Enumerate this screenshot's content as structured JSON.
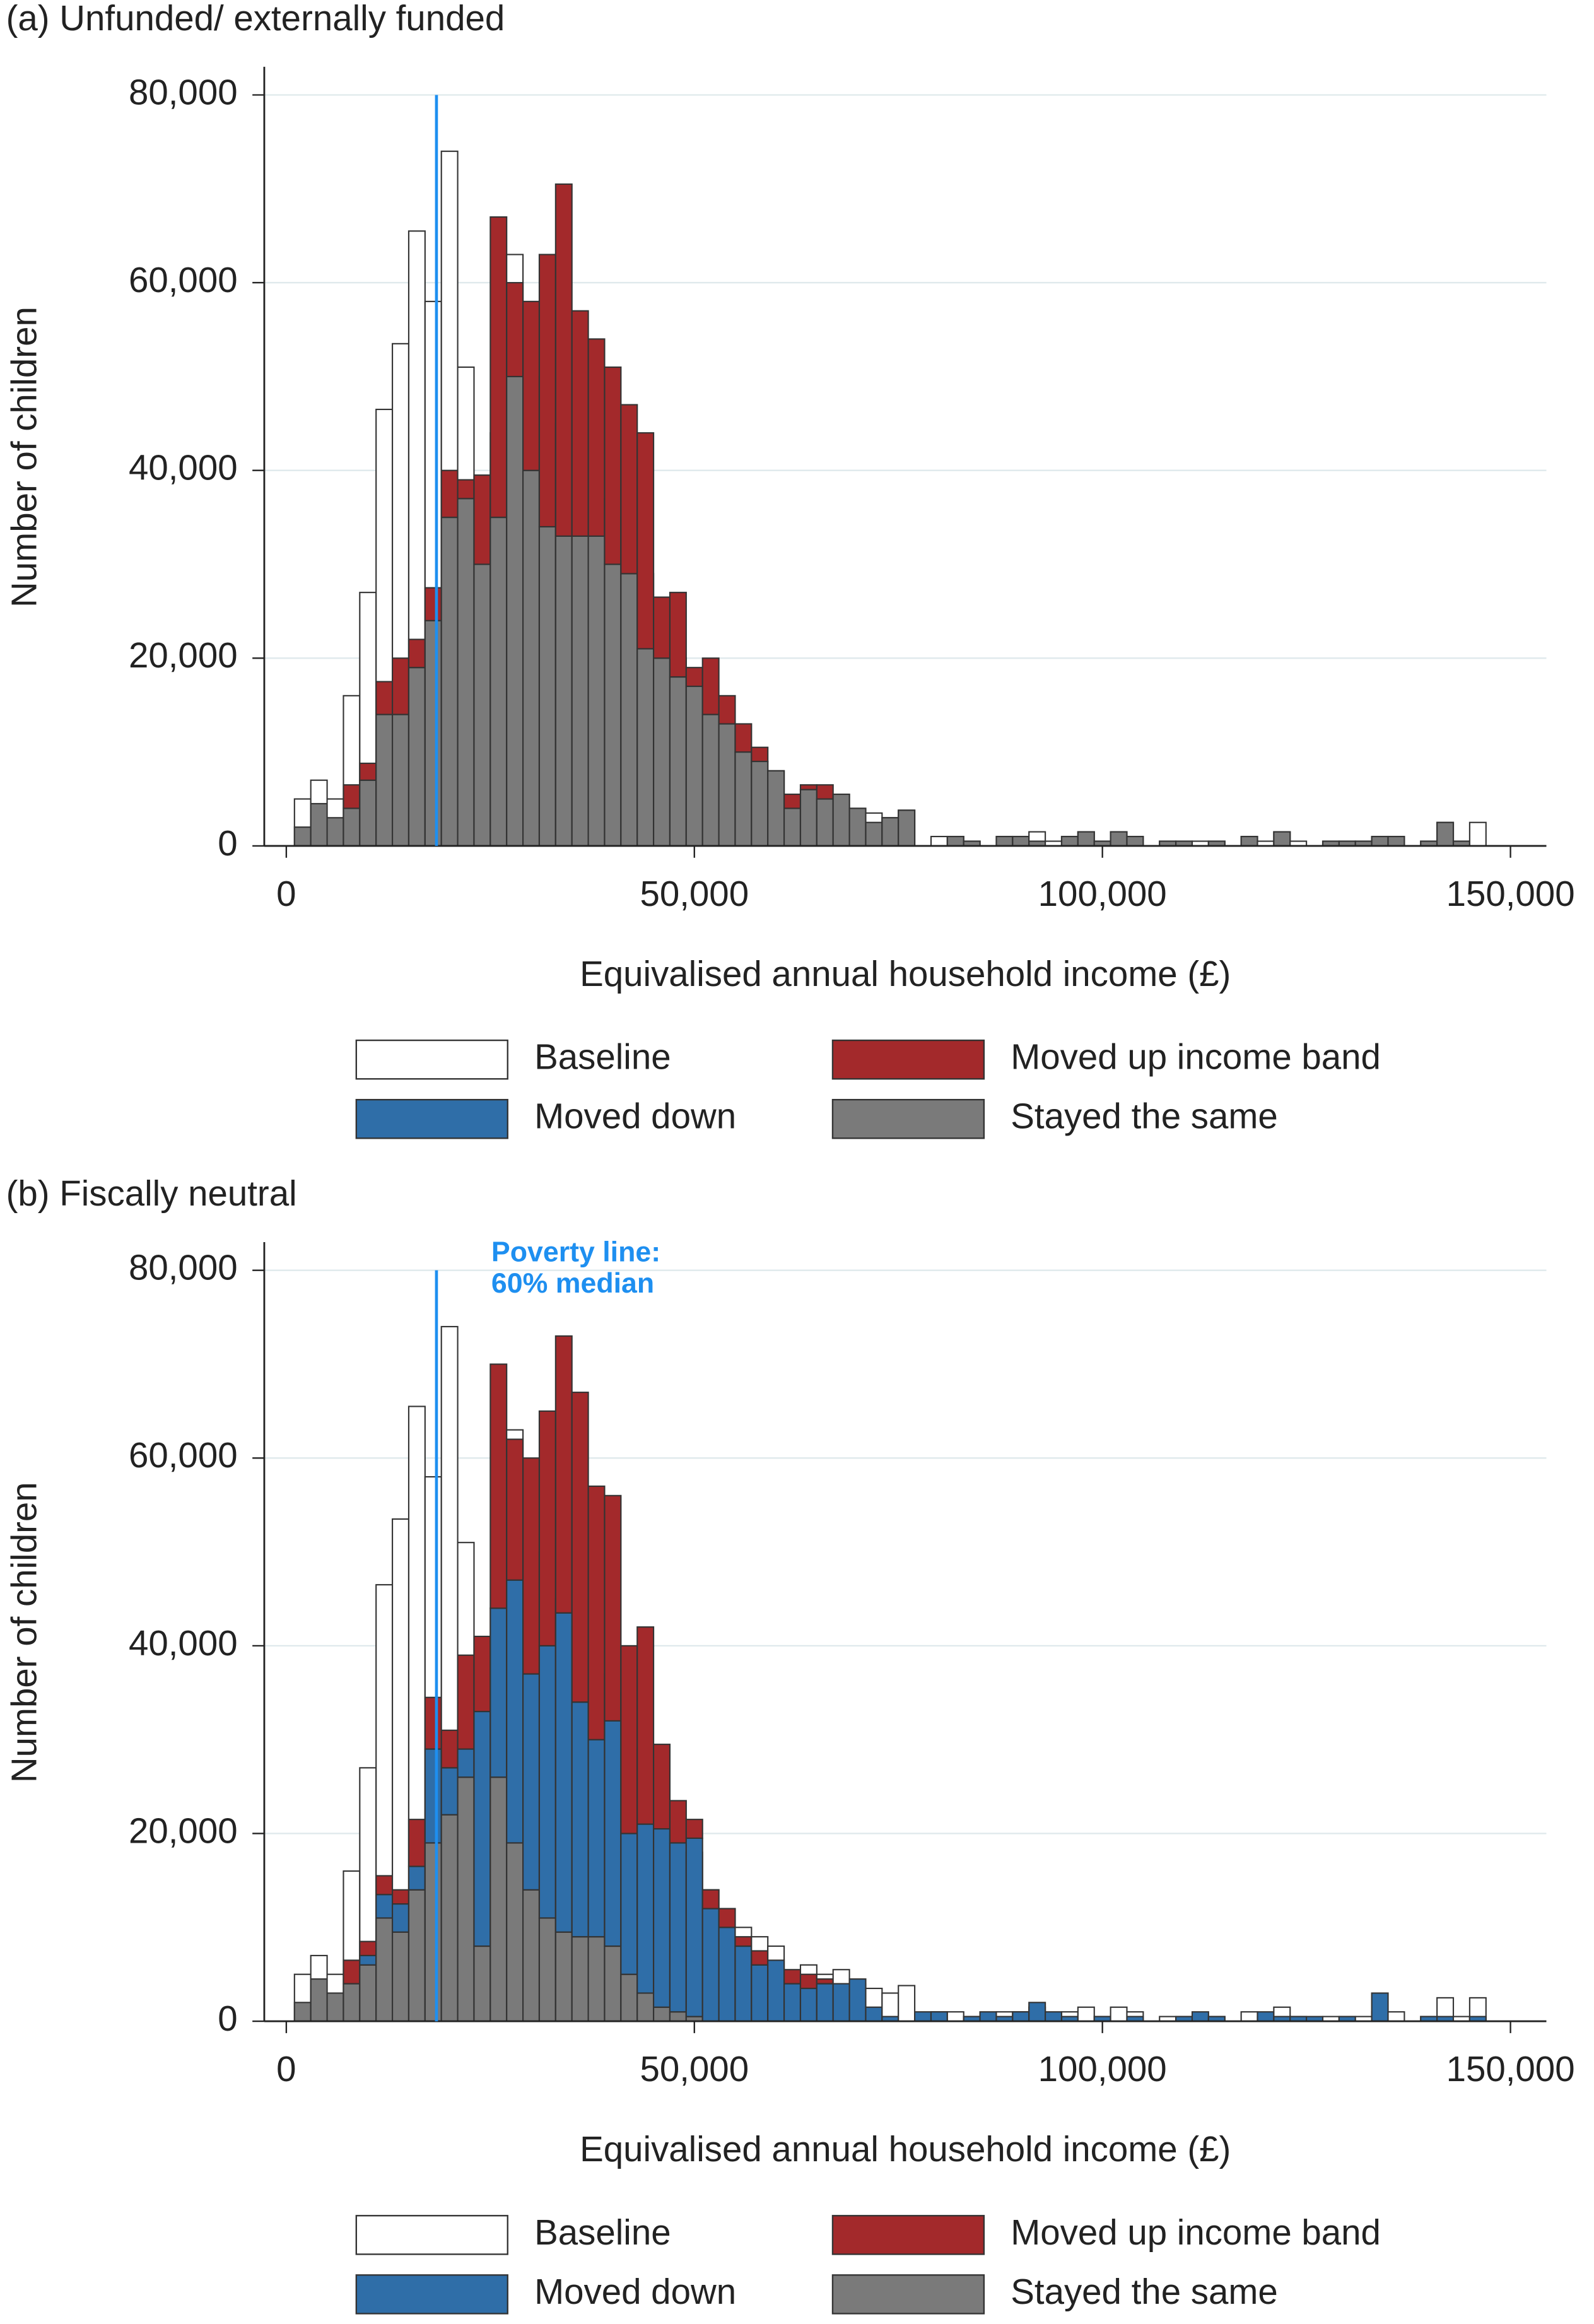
{
  "chart_data": [
    {
      "type": "histogram",
      "title": "(a) Unfunded/ externally funded",
      "xlabel": "Equivalised annual household income (£)",
      "ylabel": "Number of children",
      "bins": [
        1000,
        3000,
        5000,
        7000,
        9000,
        11000,
        13000,
        15000,
        17000,
        19000,
        21000,
        23000,
        25000,
        27000,
        29000,
        31000,
        33000,
        35000,
        37000,
        39000,
        41000,
        43000,
        45000,
        47000,
        49000,
        51000,
        53000,
        55000,
        57000,
        59000,
        61000,
        63000,
        65000,
        67000,
        69000,
        71000,
        73000,
        75000,
        77000,
        79000,
        81000,
        83000,
        85000,
        87000,
        89000,
        91000,
        93000,
        95000,
        97000,
        99000,
        101000,
        103000,
        105000,
        107000,
        109000,
        111000,
        113000,
        115000,
        117000,
        119000,
        121000,
        123000,
        125000,
        127000,
        129000,
        131000,
        133000,
        135000,
        137000,
        139000,
        141000,
        143000,
        145000,
        147000,
        149000
      ],
      "series": [
        {
          "name": "Baseline",
          "color": "#ffffff",
          "values": [
            5000,
            7000,
            5000,
            16000,
            27000,
            46500,
            53500,
            65500,
            58000,
            74000,
            51000,
            38000,
            44000,
            63000,
            56000,
            50000,
            45000,
            42000,
            40000,
            37000,
            35000,
            29000,
            22000,
            20000,
            18000,
            14000,
            12000,
            10000,
            9000,
            8000,
            5000,
            6000,
            5000,
            5500,
            4000,
            3500,
            3000,
            3800,
            0,
            1000,
            1000,
            500,
            0,
            1000,
            1000,
            1500,
            500,
            1000,
            1500,
            500,
            1500,
            1000,
            0,
            500,
            500,
            500,
            500,
            0,
            1000,
            500,
            1500,
            500,
            0,
            500,
            500,
            500,
            1000,
            1000,
            0,
            500,
            2500,
            500,
            2500,
            0
          ]
        },
        {
          "name": "Moved up income band",
          "color": "#a3292b",
          "values": [
            0,
            0,
            0,
            2500,
            1800,
            3500,
            6000,
            3000,
            3500,
            5000,
            2000,
            9500,
            32000,
            10000,
            18000,
            29000,
            37500,
            24000,
            21000,
            21000,
            18000,
            23000,
            6500,
            9000,
            2000,
            6000,
            3000,
            3000,
            1500,
            0,
            1500,
            500,
            1500,
            0,
            0,
            0,
            0,
            0,
            0,
            0,
            0,
            0,
            0,
            0,
            0,
            0,
            0,
            0,
            0,
            0,
            0,
            0,
            0,
            0,
            0,
            0,
            0,
            0,
            0,
            0,
            0,
            0,
            0,
            0,
            0,
            0,
            0,
            0,
            0,
            0,
            0,
            0,
            0,
            0
          ]
        },
        {
          "name": "Moved down",
          "color": "#2f6ea8",
          "values": [
            0,
            0,
            0,
            0,
            0,
            0,
            0,
            0,
            0,
            0,
            0,
            0,
            0,
            0,
            0,
            0,
            0,
            0,
            0,
            0,
            0,
            0,
            0,
            0,
            0,
            0,
            0,
            0,
            0,
            0,
            0,
            0,
            0,
            0,
            0,
            0,
            0,
            0,
            0,
            0,
            0,
            0,
            0,
            0,
            0,
            0,
            0,
            0,
            0,
            0,
            0,
            0,
            0,
            0,
            0,
            0,
            0,
            0,
            0,
            0,
            0,
            0,
            0,
            0,
            0,
            0,
            0,
            0,
            0,
            0,
            0,
            0,
            0,
            0
          ]
        },
        {
          "name": "Stayed the same",
          "color": "#7a7a7a",
          "values": [
            2000,
            4500,
            3000,
            4000,
            7000,
            14000,
            14000,
            19000,
            24000,
            35000,
            37000,
            30000,
            35000,
            50000,
            40000,
            34000,
            33000,
            33000,
            33000,
            30000,
            29000,
            21000,
            20000,
            18000,
            17000,
            14000,
            13000,
            10000,
            9000,
            8000,
            4000,
            6000,
            5000,
            5500,
            4000,
            2500,
            3000,
            3800,
            0,
            0,
            1000,
            500,
            0,
            1000,
            1000,
            500,
            0,
            1000,
            1500,
            500,
            1500,
            1000,
            0,
            500,
            500,
            0,
            500,
            0,
            1000,
            0,
            1500,
            0,
            0,
            500,
            500,
            500,
            1000,
            1000,
            0,
            500,
            2500,
            500,
            0,
            0
          ]
        }
      ],
      "poverty_line": 18400,
      "xlim": [
        -2700,
        154400
      ],
      "ylim": [
        0,
        83000
      ],
      "xticks": [
        0,
        {
          "value": 50000,
          "label": "50,000"
        },
        {
          "value": 100000,
          "label": "100,000"
        },
        {
          "value": 150000,
          "label": "150,000"
        }
      ],
      "yticks": [
        0,
        {
          "value": 20000,
          "label": "20,000"
        },
        {
          "value": 40000,
          "label": "40,000"
        },
        {
          "value": 60000,
          "label": "60,000"
        },
        {
          "value": 80000,
          "label": "80,000"
        }
      ],
      "grid": true,
      "poverty_color": "#1e8ff0"
    },
    {
      "type": "histogram",
      "title": "(b) Fiscally neutral",
      "xlabel": "Equivalised annual household income (£)",
      "ylabel": "Number of children",
      "annotation": [
        "Poverty line:",
        "60% median"
      ],
      "bins": [
        1000,
        3000,
        5000,
        7000,
        9000,
        11000,
        13000,
        15000,
        17000,
        19000,
        21000,
        23000,
        25000,
        27000,
        29000,
        31000,
        33000,
        35000,
        37000,
        39000,
        41000,
        43000,
        45000,
        47000,
        49000,
        51000,
        53000,
        55000,
        57000,
        59000,
        61000,
        63000,
        65000,
        67000,
        69000,
        71000,
        73000,
        75000,
        77000,
        79000,
        81000,
        83000,
        85000,
        87000,
        89000,
        91000,
        93000,
        95000,
        97000,
        99000,
        101000,
        103000,
        105000,
        107000,
        109000,
        111000,
        113000,
        115000,
        117000,
        119000,
        121000,
        123000,
        125000,
        127000,
        129000,
        131000,
        133000,
        135000,
        137000,
        139000,
        141000,
        143000,
        145000,
        147000,
        149000
      ],
      "series": [
        {
          "name": "Baseline",
          "color": "#ffffff",
          "values": [
            5000,
            7000,
            5000,
            16000,
            27000,
            46500,
            53500,
            65500,
            58000,
            74000,
            51000,
            38000,
            44000,
            63000,
            56000,
            50000,
            45000,
            42000,
            40000,
            37000,
            35000,
            29000,
            22000,
            20000,
            18000,
            14000,
            12000,
            10000,
            9000,
            8000,
            5000,
            6000,
            5000,
            5500,
            4000,
            3500,
            3000,
            3800,
            0,
            1000,
            1000,
            500,
            0,
            1000,
            1000,
            1500,
            500,
            1000,
            1500,
            500,
            1500,
            1000,
            0,
            500,
            500,
            500,
            500,
            0,
            1000,
            500,
            1500,
            500,
            0,
            500,
            500,
            500,
            1000,
            1000,
            0,
            500,
            2500,
            500,
            2500,
            0
          ]
        },
        {
          "name": "Moved up income band",
          "color": "#a3292b",
          "values": [
            0,
            0,
            0,
            2500,
            1500,
            2000,
            1500,
            5000,
            5500,
            4000,
            10000,
            8000,
            26000,
            15000,
            23000,
            25000,
            29500,
            33000,
            27000,
            24000,
            20000,
            21000,
            9000,
            4500,
            2000,
            2000,
            2000,
            1000,
            1500,
            0,
            1500,
            1500,
            500,
            0,
            0,
            0,
            0,
            0,
            0,
            0,
            0,
            0,
            0,
            0,
            0,
            0,
            0,
            0,
            0,
            0,
            0,
            0,
            0,
            0,
            0,
            0,
            0,
            0,
            0,
            0,
            0,
            0,
            0,
            0,
            0,
            0,
            0,
            0,
            0,
            0,
            0,
            0,
            0,
            0
          ]
        },
        {
          "name": "Moved down",
          "color": "#2f6ea8",
          "values": [
            0,
            0,
            0,
            0,
            1000,
            2500,
            3000,
            2500,
            10000,
            5000,
            3000,
            25000,
            18000,
            28000,
            23000,
            29000,
            34000,
            25000,
            21000,
            24000,
            15000,
            18000,
            19000,
            18000,
            19000,
            12000,
            10000,
            8000,
            6000,
            6500,
            4000,
            3500,
            4000,
            4000,
            4500,
            1500,
            500,
            0,
            1000,
            1000,
            0,
            500,
            1000,
            500,
            1000,
            2000,
            1000,
            500,
            0,
            500,
            0,
            500,
            0,
            0,
            500,
            1000,
            500,
            0,
            0,
            1000,
            500,
            500,
            500,
            0,
            500,
            0,
            3000,
            0,
            0,
            500,
            500,
            0,
            500,
            0
          ]
        },
        {
          "name": "Stayed the same",
          "color": "#7a7a7a",
          "values": [
            2000,
            4500,
            3000,
            4000,
            6000,
            11000,
            9500,
            14000,
            19000,
            22000,
            26000,
            8000,
            26000,
            19000,
            14000,
            11000,
            9500,
            9000,
            9000,
            8000,
            5000,
            3000,
            1500,
            1000,
            500,
            0,
            0,
            0,
            0,
            0,
            0,
            0,
            0,
            0,
            0,
            0,
            0,
            0,
            0,
            0,
            0,
            0,
            0,
            0,
            0,
            0,
            0,
            0,
            0,
            0,
            0,
            0,
            0,
            0,
            0,
            0,
            0,
            0,
            0,
            0,
            0,
            0,
            0,
            0,
            0,
            0,
            0,
            0,
            0,
            0,
            0,
            0,
            0,
            0
          ]
        }
      ],
      "poverty_line": 18400,
      "xlim": [
        -2700,
        154400
      ],
      "ylim": [
        0,
        83000
      ],
      "xticks": [
        0,
        {
          "value": 50000,
          "label": "50,000"
        },
        {
          "value": 100000,
          "label": "100,000"
        },
        {
          "value": 150000,
          "label": "150,000"
        }
      ],
      "yticks": [
        0,
        {
          "value": 20000,
          "label": "20,000"
        },
        {
          "value": 40000,
          "label": "40,000"
        },
        {
          "value": 60000,
          "label": "60,000"
        },
        {
          "value": 80000,
          "label": "80,000"
        }
      ],
      "grid": true,
      "poverty_color": "#1e8ff0"
    }
  ]
}
